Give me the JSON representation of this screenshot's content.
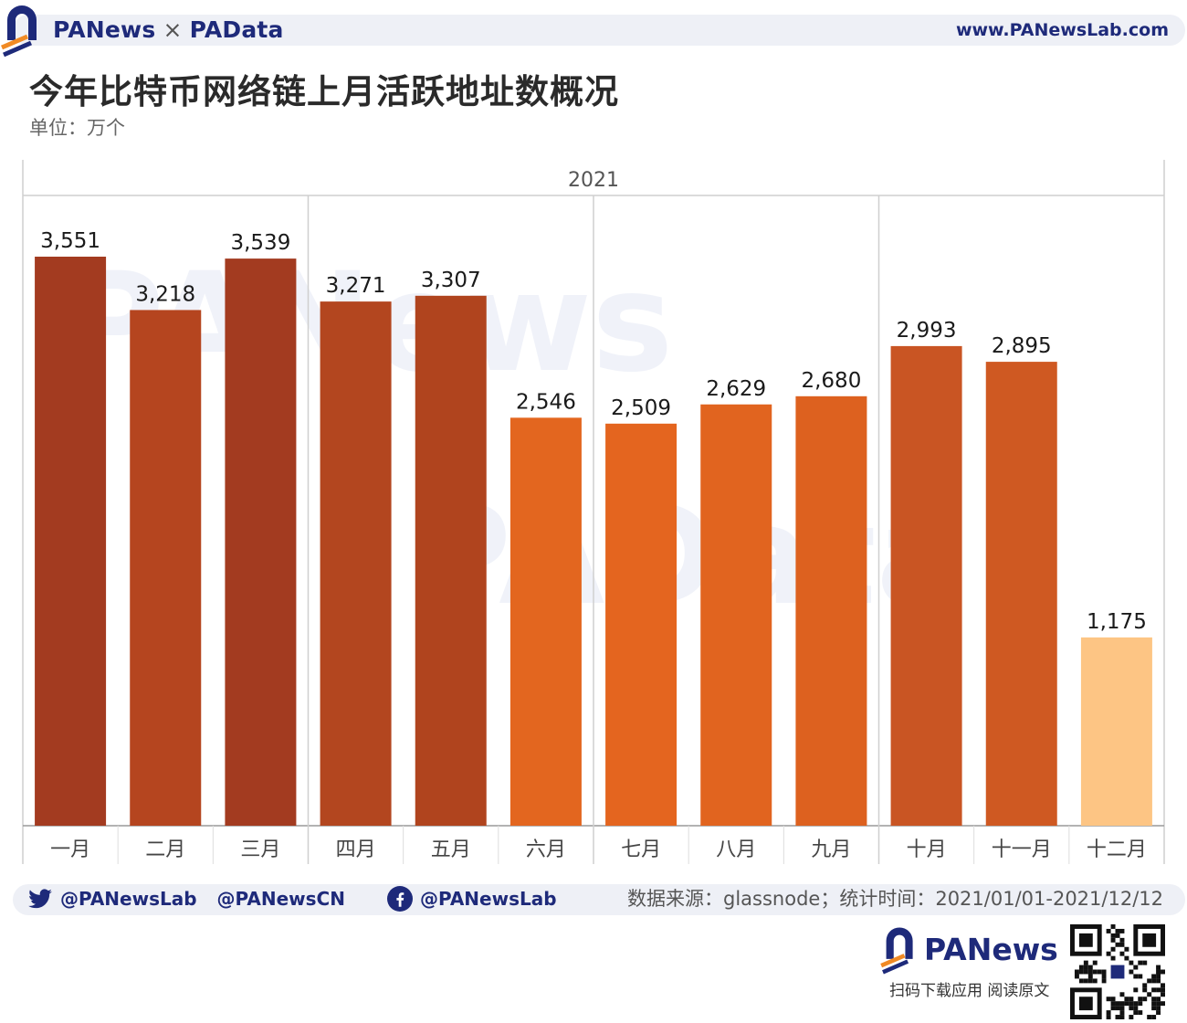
{
  "header": {
    "brand_left": "PANews",
    "brand_sep": "×",
    "brand_right": "PAData",
    "url": "www.PANewsLab.com"
  },
  "title": "今年比特币网络链上月活跃地址数概况",
  "unit": "单位：万个",
  "chart_data": {
    "type": "bar",
    "year_label": "2021",
    "categories": [
      "一月",
      "二月",
      "三月",
      "四月",
      "五月",
      "六月",
      "七月",
      "八月",
      "九月",
      "十月",
      "十一月",
      "十二月"
    ],
    "values": [
      3551,
      3218,
      3539,
      3271,
      3307,
      2546,
      2509,
      2629,
      2680,
      2993,
      2895,
      1175
    ],
    "value_labels": [
      "3,551",
      "3,218",
      "3,539",
      "3,271",
      "3,307",
      "2,546",
      "2,509",
      "2,629",
      "2,680",
      "2,993",
      "2,895",
      "1,175"
    ],
    "bar_colors": [
      "#a33b20",
      "#b5451f",
      "#a33b20",
      "#b3461f",
      "#b0441e",
      "#e3661f",
      "#e4651f",
      "#e1641f",
      "#dd611f",
      "#c95523",
      "#cf5922",
      "#fdc584"
    ],
    "quarter_groups": 4,
    "ylim": [
      0,
      3900
    ],
    "grid": false
  },
  "watermarks": [
    "PANews",
    "PAData"
  ],
  "footer": {
    "twitter_1": "@PANewsLab",
    "twitter_2": "@PANewsCN",
    "facebook": "@PANewsLab",
    "source": "数据来源：glassnode；统计时间：2021/01/01-2021/12/12",
    "brand": "PANews",
    "cta": "扫码下载应用 阅读原文"
  },
  "colors": {
    "brand_navy": "#1e2a7a",
    "brand_orange": "#f08a24",
    "twitter_blue": "#1d9bf0",
    "facebook_blue": "#1877f2"
  }
}
